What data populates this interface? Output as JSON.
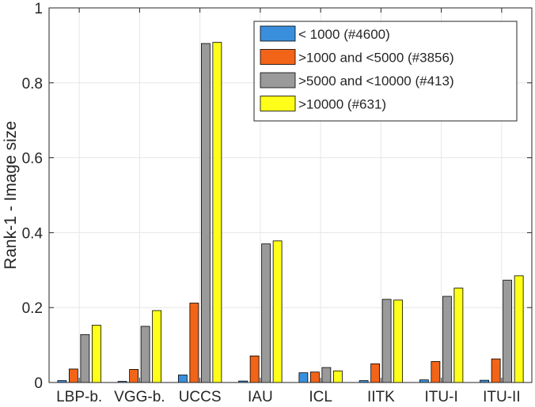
{
  "chart_data": {
    "type": "bar",
    "title": "",
    "xlabel": "",
    "ylabel": "Rank-1 - Image size",
    "ylim": [
      0,
      1
    ],
    "yticks": [
      0,
      0.2,
      0.4,
      0.6,
      0.8,
      1
    ],
    "ytick_labels": [
      "0",
      "0.2",
      "0.4",
      "0.6",
      "0.8",
      "1"
    ],
    "grid": true,
    "legend_position": "top-right",
    "categories": [
      "LBP-b.",
      "VGG-b.",
      "UCCS",
      "IAU",
      "ICL",
      "IITK",
      "ITU-I",
      "ITU-II"
    ],
    "series": [
      {
        "name": "< 1000 (#4600)",
        "color": "#3a8fdc",
        "values": [
          0.005,
          0.003,
          0.02,
          0.004,
          0.026,
          0.005,
          0.007,
          0.006
        ]
      },
      {
        "name": ">1000 and <5000 (#3856)",
        "color": "#f26418",
        "values": [
          0.036,
          0.035,
          0.212,
          0.071,
          0.028,
          0.05,
          0.056,
          0.063
        ]
      },
      {
        "name": ">5000 and <10000 (#413)",
        "color": "#9a9a9a",
        "values": [
          0.128,
          0.15,
          0.905,
          0.37,
          0.04,
          0.222,
          0.23,
          0.273
        ]
      },
      {
        "name": ">10000 (#631)",
        "color": "#ffff1a",
        "values": [
          0.153,
          0.192,
          0.908,
          0.378,
          0.031,
          0.22,
          0.252,
          0.285
        ]
      }
    ]
  }
}
